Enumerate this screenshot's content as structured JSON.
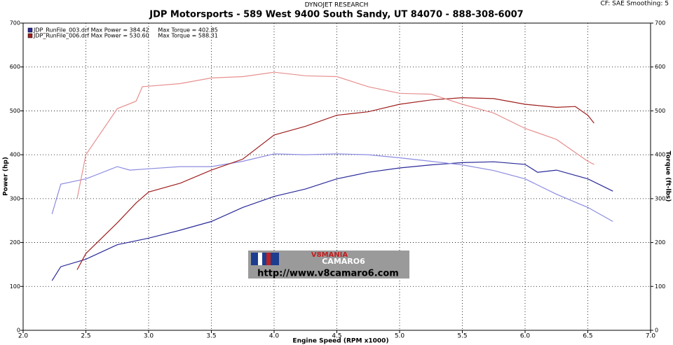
{
  "chart_data": {
    "type": "line",
    "header": "DYNOJET RESEARCH",
    "title": "JDP Motorsports - 589 West 9400 South  Sandy, UT 84070 - 888-308-6007",
    "settings_text": "CF: SAE  Smoothing: 5",
    "legend": [
      {
        "text": "JDP_RunFile_003.drf Max Power = 384.42     Max Torque = 402.85",
        "color": "#2a2a9a"
      },
      {
        "text": "JDP_RunFile_006.drf Max Power = 530.60     Max Torque = 588.31",
        "color": "#a02020"
      }
    ],
    "xlabel": "Engine Speed (RPM x1000)",
    "ylabel": "Power (hp)",
    "y2label": "Torque (ft-lbs)",
    "xlim": [
      2,
      7
    ],
    "xticks": [
      {
        "value": 2,
        "label": "2.0"
      },
      2.5,
      {
        "value": 3,
        "label": "3.0"
      },
      3.5,
      {
        "value": 4,
        "label": "4.0"
      },
      4.5,
      {
        "value": 5,
        "label": "5.0"
      },
      5.5,
      {
        "value": 6,
        "label": "6.0"
      },
      6.5,
      {
        "value": 7,
        "label": "7.0"
      }
    ],
    "ylim": [
      0,
      700
    ],
    "yticks": [
      0,
      100,
      200,
      300,
      400,
      500,
      600,
      700
    ],
    "y2lim": [
      0,
      700
    ],
    "y2ticks": [
      0,
      100,
      200,
      300,
      400,
      500,
      600,
      700
    ],
    "grid": true,
    "series": [
      {
        "color": "#2a2a9a",
        "axis": "y",
        "x": [
          2.23,
          2.3,
          2.5,
          2.75,
          3.0,
          3.25,
          3.5,
          3.75,
          4.0,
          4.25,
          4.5,
          4.75,
          5.0,
          5.25,
          5.5,
          5.75,
          6.0,
          6.1,
          6.25,
          6.5,
          6.7
        ],
        "values": [
          113,
          145,
          162,
          195,
          210,
          228,
          248,
          280,
          305,
          322,
          345,
          360,
          370,
          377,
          382,
          384,
          378,
          360,
          365,
          345,
          317
        ]
      },
      {
        "color": "#8c8ce0",
        "axis": "y2",
        "x": [
          2.23,
          2.3,
          2.5,
          2.75,
          2.85,
          3.0,
          3.25,
          3.5,
          3.75,
          4.0,
          4.25,
          4.5,
          4.75,
          5.0,
          5.25,
          5.5,
          5.75,
          6.0,
          6.25,
          6.5,
          6.7
        ],
        "values": [
          265,
          333,
          345,
          373,
          365,
          368,
          373,
          373,
          385,
          402,
          400,
          402,
          400,
          393,
          385,
          377,
          364,
          345,
          310,
          280,
          248
        ]
      },
      {
        "color": "#a02020",
        "axis": "y",
        "x": [
          2.43,
          2.5,
          2.75,
          2.9,
          3.0,
          3.25,
          3.5,
          3.75,
          4.0,
          4.25,
          4.5,
          4.75,
          5.0,
          5.25,
          5.5,
          5.75,
          6.0,
          6.25,
          6.4,
          6.5,
          6.55
        ],
        "values": [
          138,
          175,
          245,
          290,
          315,
          335,
          365,
          390,
          445,
          465,
          490,
          498,
          515,
          525,
          530,
          528,
          515,
          508,
          510,
          490,
          472
        ]
      },
      {
        "color": "#e89090",
        "axis": "y2",
        "x": [
          2.43,
          2.5,
          2.75,
          2.9,
          2.95,
          3.25,
          3.5,
          3.75,
          4.0,
          4.25,
          4.5,
          4.75,
          5.0,
          5.25,
          5.5,
          5.75,
          6.0,
          6.25,
          6.5,
          6.55
        ],
        "values": [
          300,
          400,
          505,
          522,
          555,
          562,
          575,
          578,
          588,
          580,
          578,
          555,
          540,
          538,
          515,
          495,
          460,
          435,
          385,
          378
        ]
      }
    ],
    "watermark": {
      "brand_top": "V8MANIA",
      "brand_bottom": "CAMARO6",
      "url": "http://www.v8camaro6.com"
    }
  }
}
